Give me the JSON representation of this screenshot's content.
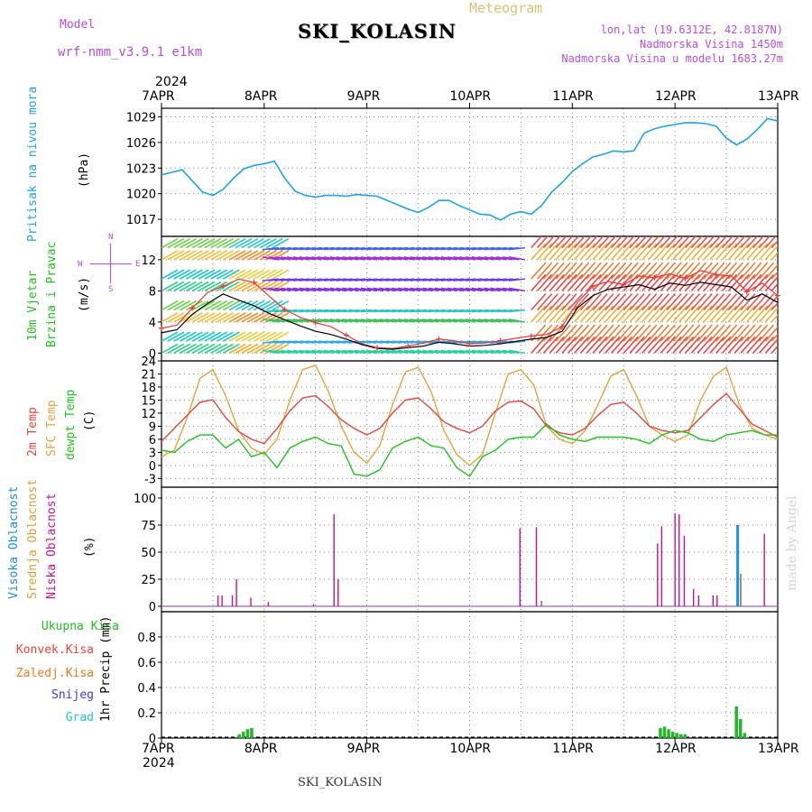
{
  "header": {
    "model_label": "Model",
    "model_name": "wrf-nmm_v3.9.1 e1km",
    "meteogram": "Meteogram",
    "station": "SKI_KOLASIN",
    "lonlat": "lon,lat (19.6312E, 42.8187N)",
    "elevation": "Nadmorska Visina 1450m",
    "model_elevation": "Nadmorska Visina u modelu 1683.27m",
    "footer_station": "SKI_KOLASIN",
    "credit": "made by Angel"
  },
  "time_axis": {
    "year": "2024",
    "labels": [
      "7APR",
      "8APR",
      "9APR",
      "10APR",
      "11APR",
      "12APR",
      "13APR"
    ]
  },
  "compass": {
    "n": "N",
    "w": "W",
    "e": "E",
    "s": "S"
  },
  "colors": {
    "pressure": "#1fa3e8",
    "temp": "#e8453c",
    "sfc_temp": "#e3a43c",
    "dewpt": "#22c122",
    "high_cloud": "#1f8fe0",
    "mid_cloud": "#d6a23c",
    "low_cloud": "#c8128c",
    "total_precip": "#22b82a",
    "conv_precip": "#e83a3a",
    "frz_precip": "#f07a20",
    "snow": "#3a3ae8",
    "hail": "#20c8c8"
  },
  "chart_data": [
    {
      "type": "line",
      "title": "",
      "label_left": "Pritisak na nivou mora",
      "unit": "(hPa)",
      "ylim": [
        1015,
        1030
      ],
      "yticks": [
        1017,
        1020,
        1023,
        1026,
        1029
      ],
      "x_days": [
        0,
        0.1,
        0.2,
        0.3,
        0.4,
        0.5,
        0.6,
        0.7,
        0.8,
        0.9,
        1.0,
        1.1,
        1.2,
        1.3,
        1.4,
        1.5,
        1.6,
        1.7,
        1.8,
        1.9,
        2.0,
        2.1,
        2.2,
        2.3,
        2.4,
        2.5,
        2.6,
        2.7,
        2.8,
        2.9,
        3.0,
        3.1,
        3.2,
        3.3,
        3.4,
        3.5,
        3.6,
        3.7,
        3.8,
        3.9,
        4.0,
        4.1,
        4.2,
        4.3,
        4.4,
        4.5,
        4.6,
        4.7,
        4.8,
        4.9,
        5.0,
        5.1,
        5.2,
        5.3,
        5.4,
        5.5,
        5.6,
        5.7,
        5.8,
        5.9,
        6.0
      ],
      "series": [
        {
          "values": [
            1022.2,
            1022.5,
            1022.8,
            1021.5,
            1020.2,
            1019.8,
            1020.5,
            1021.8,
            1022.9,
            1023.3,
            1023.5,
            1023.8,
            1021.8,
            1020.3,
            1019.8,
            1019.6,
            1019.8,
            1019.8,
            1019.7,
            1019.9,
            1019.8,
            1019.7,
            1019.2,
            1018.7,
            1018.2,
            1017.8,
            1018.4,
            1019.2,
            1019.2,
            1018.6,
            1018.1,
            1017.6,
            1017.5,
            1016.9,
            1017.6,
            1017.9,
            1017.6,
            1018.6,
            1020.2,
            1021.3,
            1022.6,
            1023.5,
            1024.3,
            1024.6,
            1025.0,
            1024.9,
            1025.0,
            1027.1,
            1027.6,
            1027.9,
            1028.1,
            1028.3,
            1028.3,
            1028.2,
            1027.9,
            1026.5,
            1025.7,
            1026.4,
            1027.5,
            1028.8,
            1028.5
          ]
        }
      ]
    },
    {
      "type": "line",
      "title": "",
      "label_left": [
        "10m Vjetar",
        "Brzina i Pravac"
      ],
      "unit": "(m/s)",
      "ylim": [
        -1,
        15
      ],
      "yticks": [
        0,
        4,
        8,
        12
      ],
      "x_days": [
        0,
        0.15,
        0.3,
        0.45,
        0.6,
        0.75,
        0.9,
        1.05,
        1.2,
        1.35,
        1.5,
        1.65,
        1.8,
        1.95,
        2.1,
        2.25,
        2.4,
        2.55,
        2.7,
        2.85,
        3.0,
        3.15,
        3.3,
        3.45,
        3.6,
        3.75,
        3.9,
        4.05,
        4.2,
        4.35,
        4.5,
        4.65,
        4.8,
        4.95,
        5.1,
        5.25,
        5.4,
        5.55,
        5.7,
        5.85,
        6.0
      ],
      "series": [
        {
          "values": [
            3.2,
            3.6,
            5.8,
            7.8,
            8.6,
            9.5,
            9.1,
            7.3,
            5.6,
            4.6,
            3.9,
            3.4,
            2.3,
            1.2,
            0.7,
            0.6,
            0.9,
            1.3,
            1.8,
            1.6,
            1.2,
            1.3,
            1.6,
            1.9,
            2.2,
            2.4,
            3.4,
            6.5,
            8.6,
            9.2,
            8.8,
            9.9,
            9.7,
            10.2,
            9.6,
            10.6,
            10.1,
            9.9,
            7.9,
            9.0,
            7.4
          ]
        },
        {
          "values": [
            2.6,
            3.0,
            5.0,
            6.4,
            7.6,
            6.8,
            6.1,
            5.1,
            4.3,
            3.5,
            2.8,
            2.4,
            1.8,
            1.1,
            0.6,
            0.5,
            0.7,
            0.9,
            1.4,
            1.2,
            0.9,
            1.0,
            1.2,
            1.5,
            1.8,
            2.0,
            2.8,
            5.8,
            7.4,
            8.2,
            8.5,
            8.8,
            8.2,
            9.0,
            8.7,
            9.1,
            8.8,
            8.5,
            6.8,
            7.6,
            6.5
          ]
        }
      ]
    },
    {
      "type": "line",
      "title": "",
      "label_left": [
        "2m Temp",
        "SFC Temp",
        "dewpt Temp"
      ],
      "unit": "(C)",
      "ylim": [
        -5,
        24
      ],
      "yticks": [
        -3,
        0,
        3,
        6,
        9,
        12,
        15,
        18,
        21,
        24
      ],
      "x_days": [
        0,
        0.125,
        0.25,
        0.375,
        0.5,
        0.625,
        0.75,
        0.875,
        1.0,
        1.125,
        1.25,
        1.375,
        1.5,
        1.625,
        1.75,
        1.875,
        2.0,
        2.125,
        2.25,
        2.375,
        2.5,
        2.625,
        2.75,
        2.875,
        3.0,
        3.125,
        3.25,
        3.375,
        3.5,
        3.625,
        3.75,
        3.875,
        4.0,
        4.125,
        4.25,
        4.375,
        4.5,
        4.625,
        4.75,
        4.875,
        5.0,
        5.125,
        5.25,
        5.375,
        5.5,
        5.625,
        5.75,
        5.875,
        6.0
      ],
      "series": [
        {
          "name": "2m Temp",
          "values": [
            5.5,
            8.5,
            11.5,
            14.5,
            15.1,
            11.0,
            7.8,
            6.0,
            5.0,
            8.5,
            12.5,
            15.5,
            16.0,
            13.5,
            10.5,
            8.5,
            7.0,
            8.5,
            12.0,
            15.0,
            15.5,
            13.0,
            10.0,
            8.5,
            7.5,
            9.0,
            12.5,
            14.5,
            14.8,
            13.0,
            9.0,
            7.5,
            7.0,
            8.5,
            11.5,
            14.0,
            14.5,
            12.0,
            9.0,
            8.0,
            7.5,
            8.0,
            11.0,
            14.0,
            16.5,
            13.0,
            9.5,
            8.0,
            6.5
          ]
        },
        {
          "name": "SFC Temp",
          "values": [
            2.0,
            3.5,
            11.0,
            20.0,
            22.0,
            16.0,
            8.0,
            4.0,
            2.5,
            6.0,
            15.0,
            22.0,
            23.0,
            17.0,
            9.0,
            3.0,
            0.5,
            4.5,
            14.0,
            21.5,
            22.5,
            17.0,
            8.0,
            2.5,
            0.0,
            2.5,
            12.0,
            21.0,
            22.0,
            18.5,
            9.0,
            6.0,
            5.0,
            8.0,
            14.0,
            20.5,
            22.0,
            16.0,
            9.0,
            7.0,
            5.5,
            7.0,
            15.0,
            20.5,
            22.5,
            14.0,
            8.5,
            7.0,
            6.0
          ]
        },
        {
          "name": "dewpt Temp",
          "values": [
            3.5,
            3.0,
            5.5,
            7.0,
            7.0,
            4.0,
            6.0,
            2.0,
            3.0,
            -0.5,
            4.0,
            5.5,
            6.5,
            5.0,
            4.5,
            -2.0,
            -2.5,
            -1.0,
            4.0,
            5.5,
            6.5,
            4.5,
            4.0,
            -0.5,
            -2.5,
            2.0,
            3.5,
            6.0,
            6.5,
            6.5,
            9.5,
            7.0,
            6.0,
            5.5,
            6.5,
            6.5,
            6.5,
            6.0,
            5.0,
            7.0,
            8.0,
            7.5,
            6.0,
            5.5,
            7.0,
            7.5,
            8.0,
            7.0,
            7.0
          ]
        }
      ]
    },
    {
      "type": "bar",
      "title": "",
      "label_left": [
        "Visoka Oblacnost",
        "Srednja Oblacnost",
        "Niska Oblacnost"
      ],
      "unit": "(%)",
      "ylim": [
        -5,
        110
      ],
      "yticks": [
        0,
        25,
        50,
        75,
        100
      ],
      "series": [
        {
          "name": "Niska Oblacnost",
          "bars": [
            [
              0.55,
              10
            ],
            [
              0.59,
              10
            ],
            [
              0.69,
              10
            ],
            [
              0.73,
              25
            ],
            [
              0.87,
              8
            ],
            [
              1.04,
              4
            ],
            [
              1.48,
              2
            ],
            [
              1.68,
              85
            ],
            [
              1.72,
              25
            ],
            [
              3.49,
              72
            ],
            [
              3.65,
              73
            ],
            [
              4.83,
              58
            ],
            [
              4.87,
              74
            ],
            [
              5.0,
              86
            ],
            [
              5.04,
              85
            ],
            [
              5.09,
              65
            ],
            [
              5.18,
              16
            ],
            [
              5.23,
              10
            ],
            [
              5.37,
              10
            ],
            [
              5.41,
              10
            ],
            [
              5.87,
              67
            ]
          ]
        },
        {
          "name": "Srednja Oblacnost",
          "bars": [
            [
              3.7,
              5
            ],
            [
              5.64,
              30
            ]
          ]
        },
        {
          "name": "Visoka Oblacnost",
          "bars": [
            [
              5.61,
              75
            ]
          ]
        }
      ]
    },
    {
      "type": "bar",
      "title": "",
      "label_left": [
        "Ukupna Kisa",
        "Konvek.Kisa",
        "Zaledj.Kisa",
        "Snijeg",
        "Grad"
      ],
      "unit": "1hr Precip (mm)",
      "ylim": [
        0,
        1.0
      ],
      "yticks": [
        0,
        0.2,
        0.4,
        0.6,
        0.8
      ],
      "series": [
        {
          "name": "Ukupna Kisa",
          "bars": [
            [
              0.76,
              0.03
            ],
            [
              0.8,
              0.05
            ],
            [
              0.84,
              0.07
            ],
            [
              0.88,
              0.08
            ],
            [
              4.86,
              0.08
            ],
            [
              4.9,
              0.09
            ],
            [
              4.94,
              0.07
            ],
            [
              4.98,
              0.05
            ],
            [
              5.02,
              0.04
            ],
            [
              5.06,
              0.03
            ],
            [
              5.1,
              0.03
            ],
            [
              5.6,
              0.25
            ],
            [
              5.64,
              0.15
            ],
            [
              5.68,
              0.04
            ]
          ]
        }
      ]
    }
  ]
}
